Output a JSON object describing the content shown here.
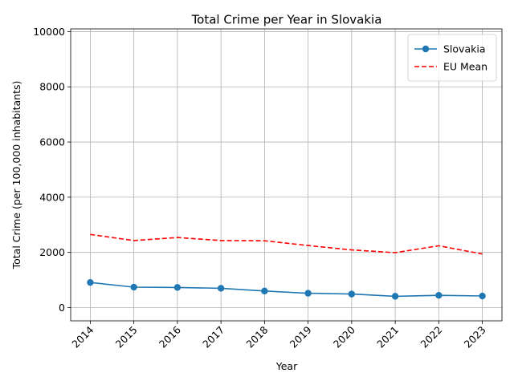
{
  "chart_data": {
    "type": "line",
    "title": "Total Crime per Year in Slovakia",
    "xlabel": "Year",
    "ylabel": "Total Crime (per 100,000 inhabitants)",
    "x": [
      2014,
      2015,
      2016,
      2017,
      2018,
      2019,
      2020,
      2021,
      2022,
      2023
    ],
    "xlim": [
      2013.55,
      2023.45
    ],
    "ylim": [
      -480,
      10100
    ],
    "yticks": [
      0,
      2000,
      4000,
      6000,
      8000,
      10000
    ],
    "grid": true,
    "legend_position": "upper right",
    "series": [
      {
        "name": "Slovakia",
        "style": "solid",
        "marker": "circle",
        "color": "#1f77b4",
        "values": [
          910,
          740,
          730,
          700,
          600,
          520,
          490,
          410,
          445,
          420
        ]
      },
      {
        "name": "EU Mean",
        "style": "dashed",
        "marker": "none",
        "color": "#ff0000",
        "values": [
          2650,
          2430,
          2540,
          2430,
          2420,
          2250,
          2090,
          1990,
          2240,
          1940
        ]
      }
    ]
  }
}
